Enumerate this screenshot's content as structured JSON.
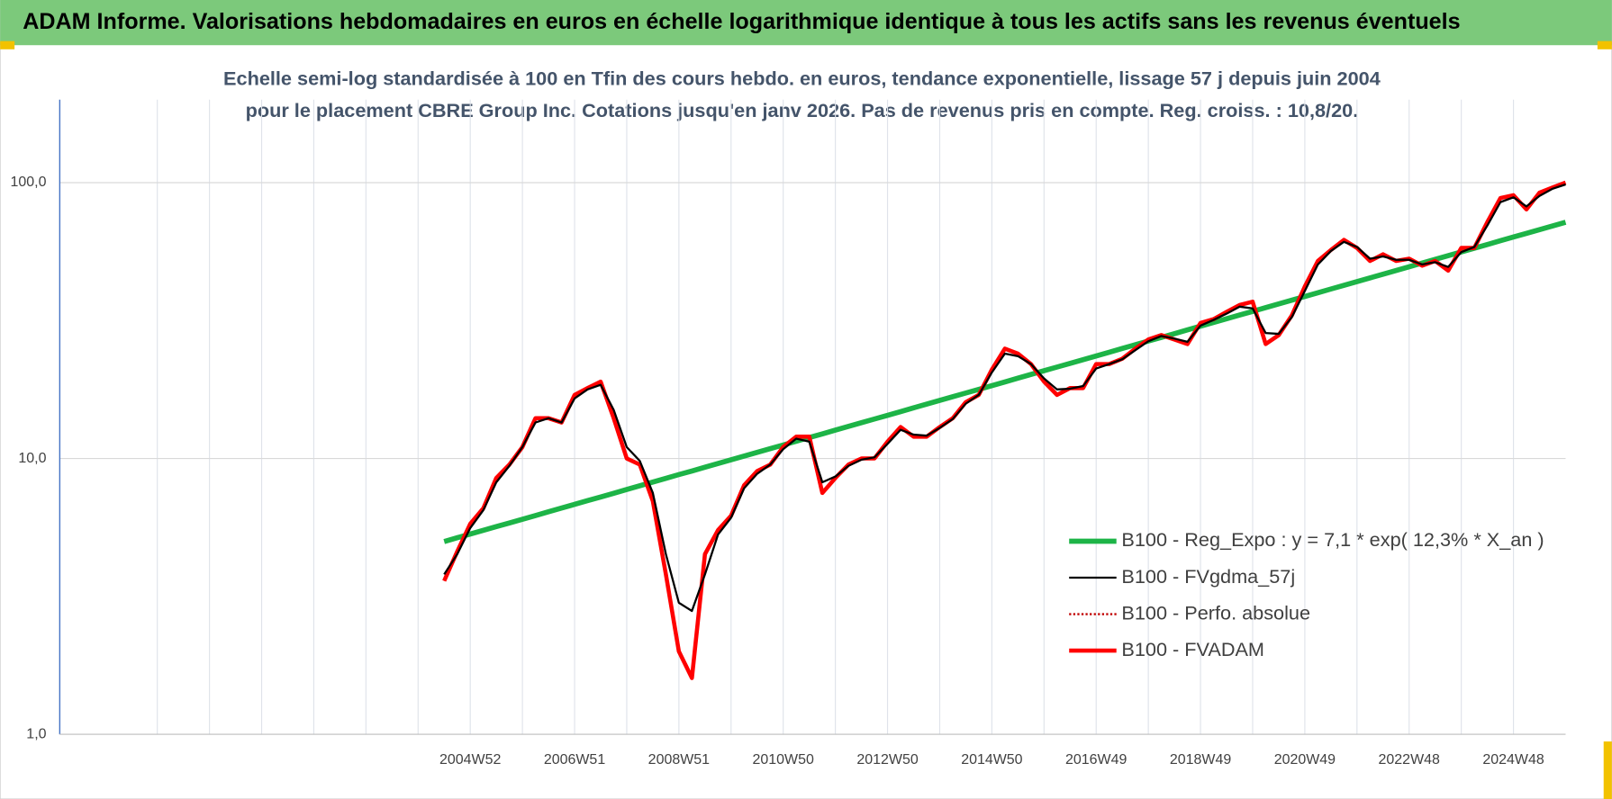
{
  "header": {
    "title": "ADAM Informe. Valorisations hebdomadaires en euros en échelle logarithmique identique à tous les actifs sans les revenus éventuels"
  },
  "chart_data": {
    "type": "line",
    "title": "Echelle semi-log standardisée à 100 en Tfin des cours hebdo. en euros, tendance exponentielle, lissage 57 j depuis juin 2004 pour le placement CBRE Group Inc. Cotations jusqu'en janv 2026. Pas de revenus pris en compte. Reg. croiss. : 10,8/20.",
    "log_scale": true,
    "grid": true,
    "legend": "lower right",
    "ylim": [
      1,
      200
    ],
    "yticks": [
      {
        "value": 1,
        "label": "1,0"
      },
      {
        "value": 10,
        "label": "10,0"
      },
      {
        "value": 100,
        "label": "100,0"
      }
    ],
    "categories": [
      null,
      null,
      "2004W52",
      null,
      null,
      null,
      null,
      null,
      null,
      null,
      "2006W51",
      null,
      null,
      null,
      null,
      null,
      null,
      null,
      "2008W51",
      null,
      null,
      null,
      null,
      null,
      null,
      null,
      "2010W50",
      null,
      null,
      null,
      null,
      null,
      null,
      null,
      "2012W50",
      null,
      null,
      null,
      null,
      null,
      null,
      null,
      "2014W50",
      null,
      null,
      null,
      null,
      null,
      null,
      null,
      "2016W49",
      null,
      null,
      null,
      null,
      null,
      null,
      null,
      "2018W49",
      null,
      null,
      null,
      null,
      null,
      null,
      null,
      "2020W49",
      null,
      null,
      null,
      null,
      null,
      null,
      null,
      "2022W48",
      null,
      null,
      null,
      null,
      null,
      null,
      null,
      "2024W48",
      null,
      null,
      null,
      null
    ],
    "series": [
      {
        "name": "B100 - Reg_Expo : y = 7,1 * exp( 12,3% *  X_an )",
        "color": "#1db447",
        "style": "solid",
        "width": 5,
        "values": [
          5.0,
          5.16,
          5.32,
          5.49,
          5.66,
          5.84,
          6.02,
          6.21,
          6.41,
          6.61,
          6.82,
          7.03,
          7.25,
          7.48,
          7.72,
          7.96,
          8.21,
          8.47,
          8.74,
          9.01,
          9.3,
          9.59,
          9.89,
          10.2,
          10.52,
          10.85,
          11.19,
          11.55,
          11.91,
          12.28,
          12.67,
          13.07,
          13.48,
          13.9,
          14.34,
          14.79,
          15.26,
          15.74,
          16.23,
          16.74,
          17.27,
          17.81,
          18.37,
          18.95,
          19.55,
          20.16,
          20.8,
          21.45,
          22.13,
          22.82,
          23.54,
          24.28,
          25.05,
          25.84,
          26.65,
          27.49,
          28.35,
          29.25,
          30.17,
          31.12,
          32.1,
          33.11,
          34.15,
          35.23,
          36.34,
          37.48,
          38.66,
          39.88,
          41.14,
          42.43,
          43.77,
          45.15,
          46.57,
          48.04,
          49.55,
          51.11,
          52.72,
          54.38,
          56.09,
          57.86,
          59.68,
          61.56,
          63.5,
          65.5,
          67.56,
          69.69,
          71.88
        ]
      },
      {
        "name": "B100 - FVgdma_57j",
        "color": "#000000",
        "style": "solid",
        "width": 2,
        "values": [
          3.8,
          4.5,
          5.6,
          6.5,
          8.2,
          9.4,
          11,
          13.5,
          14,
          13.5,
          16.5,
          17.8,
          18.5,
          15,
          11,
          9.8,
          7.5,
          4.5,
          3.0,
          2.8,
          3.8,
          5.3,
          6.1,
          7.8,
          8.8,
          9.5,
          10.8,
          11.8,
          11.5,
          8.2,
          8.6,
          9.4,
          9.9,
          10.1,
          11.3,
          12.7,
          12.2,
          12.1,
          12.9,
          13.9,
          15.8,
          17,
          20.5,
          24,
          23.5,
          22,
          19.5,
          17.8,
          17.9,
          18.3,
          21.2,
          22,
          22.9,
          24.7,
          26.6,
          27.8,
          27.2,
          26.5,
          30.3,
          31.8,
          33.5,
          35.5,
          35,
          28.5,
          28.3,
          32.5,
          40.5,
          50.5,
          56.5,
          61,
          58.5,
          53,
          54,
          52.5,
          52.5,
          50.5,
          51.5,
          49.5,
          56,
          58.5,
          70,
          85,
          88.5,
          82,
          89.5,
          95,
          98.5
        ]
      },
      {
        "name": "B100 - Perfo. absolue",
        "color": "#c00000",
        "style": "dotted",
        "width": 2,
        "values": [
          3.6,
          4.6,
          5.8,
          6.6,
          8.5,
          9.5,
          11,
          14,
          14,
          13.5,
          17,
          18,
          19,
          14,
          10,
          9.5,
          7,
          3.8,
          2.0,
          1.6,
          4.5,
          5.5,
          6.2,
          8,
          9,
          9.5,
          11,
          12,
          12,
          7.5,
          8.5,
          9.5,
          10,
          10,
          11.5,
          13,
          12,
          12,
          13,
          14,
          16,
          17,
          21,
          25,
          24,
          22,
          19,
          17,
          18,
          18,
          22,
          22,
          23,
          25,
          27,
          28,
          27,
          26,
          31,
          32,
          34,
          36,
          37,
          26,
          28,
          33,
          42,
          52,
          57,
          62,
          58,
          52,
          55,
          52,
          53,
          50,
          52,
          48,
          58,
          58,
          72,
          88,
          90,
          80,
          92,
          96,
          100
        ]
      },
      {
        "name": "B100 - FVADAM",
        "color": "#ff0000",
        "style": "solid",
        "width": 4,
        "values": [
          3.6,
          4.6,
          5.8,
          6.6,
          8.5,
          9.5,
          11,
          14,
          14,
          13.5,
          17,
          18,
          19,
          14,
          10,
          9.5,
          7,
          3.8,
          2.0,
          1.6,
          4.5,
          5.5,
          6.2,
          8,
          9,
          9.5,
          11,
          12,
          12,
          7.5,
          8.5,
          9.5,
          10,
          10,
          11.5,
          13,
          12,
          12,
          13,
          14,
          16,
          17,
          21,
          25,
          24,
          22,
          19,
          17,
          18,
          18,
          22,
          22,
          23,
          25,
          27,
          28,
          27,
          26,
          31,
          32,
          34,
          36,
          37,
          26,
          28,
          33,
          42,
          52,
          57,
          62,
          58,
          52,
          55,
          52,
          53,
          50,
          52,
          48,
          58,
          58,
          72,
          88,
          90,
          80,
          92,
          96,
          100
        ]
      }
    ]
  }
}
